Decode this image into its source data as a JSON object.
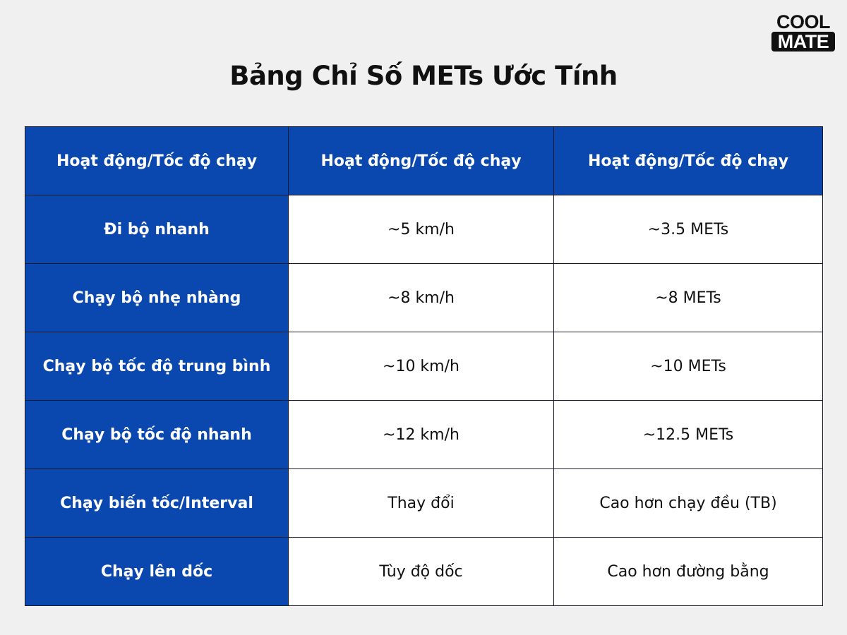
{
  "logo": {
    "line1": "COOL",
    "line2": "MATE"
  },
  "title": "Bảng Chỉ Số METs Ước Tính",
  "colors": {
    "header_bg": "#0a47ae",
    "page_bg": "#eff0ef"
  },
  "table": {
    "headers": [
      "Hoạt động/Tốc độ chạy",
      "Hoạt động/Tốc độ chạy",
      "Hoạt động/Tốc độ chạy"
    ],
    "rows": [
      [
        "Đi bộ nhanh",
        "~5 km/h",
        "~3.5 METs"
      ],
      [
        "Chạy bộ nhẹ nhàng",
        "~8 km/h",
        "~8 METs"
      ],
      [
        "Chạy bộ tốc độ trung bình",
        "~10 km/h",
        "~10 METs"
      ],
      [
        "Chạy bộ tốc độ nhanh",
        "~12 km/h",
        "~12.5 METs"
      ],
      [
        "Chạy biến tốc/Interval",
        "Thay đổi",
        "Cao hơn chạy đều (TB)"
      ],
      [
        "Chạy lên dốc",
        "Tùy độ dốc",
        "Cao hơn đường bằng"
      ]
    ]
  }
}
